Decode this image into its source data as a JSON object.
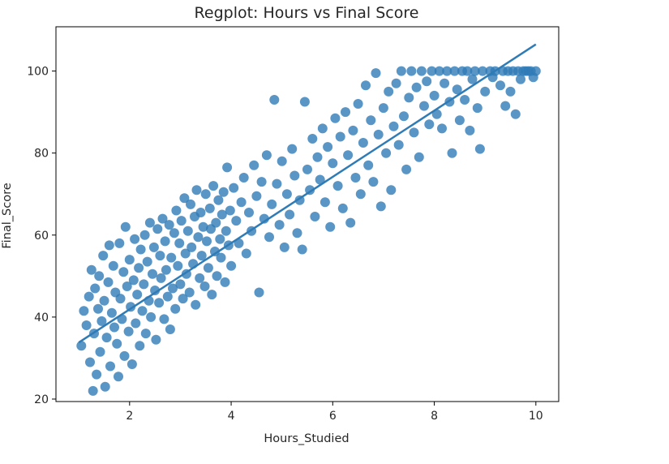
{
  "chart_data": {
    "type": "scatter",
    "title": "Regplot: Hours vs Final Score",
    "xlabel": "Hours_Studied",
    "ylabel": "Final_Score",
    "xlim": [
      0.55,
      10.45
    ],
    "ylim": [
      19.4,
      110.8
    ],
    "xticks": [
      2,
      4,
      6,
      8,
      10
    ],
    "yticks": [
      20,
      40,
      60,
      80,
      100
    ],
    "grid": false,
    "color": "#2f7bb6",
    "regression_line": {
      "x": [
        1.0,
        10.0
      ],
      "y": [
        33.8,
        106.5
      ]
    },
    "points": [
      [
        1.05,
        33.0
      ],
      [
        1.1,
        41.5
      ],
      [
        1.15,
        38.0
      ],
      [
        1.2,
        45.0
      ],
      [
        1.22,
        29.0
      ],
      [
        1.25,
        51.5
      ],
      [
        1.28,
        22.0
      ],
      [
        1.3,
        36.0
      ],
      [
        1.32,
        47.0
      ],
      [
        1.35,
        26.0
      ],
      [
        1.38,
        42.0
      ],
      [
        1.4,
        50.0
      ],
      [
        1.42,
        31.5
      ],
      [
        1.45,
        39.0
      ],
      [
        1.48,
        55.0
      ],
      [
        1.5,
        44.0
      ],
      [
        1.52,
        23.0
      ],
      [
        1.55,
        35.0
      ],
      [
        1.58,
        48.5
      ],
      [
        1.6,
        57.5
      ],
      [
        1.62,
        28.0
      ],
      [
        1.65,
        41.0
      ],
      [
        1.68,
        52.5
      ],
      [
        1.7,
        37.5
      ],
      [
        1.72,
        46.0
      ],
      [
        1.75,
        33.5
      ],
      [
        1.78,
        25.5
      ],
      [
        1.8,
        58.0
      ],
      [
        1.82,
        44.5
      ],
      [
        1.85,
        39.5
      ],
      [
        1.88,
        51.0
      ],
      [
        1.9,
        30.5
      ],
      [
        1.92,
        62.0
      ],
      [
        1.95,
        47.5
      ],
      [
        1.98,
        36.5
      ],
      [
        2.0,
        54.0
      ],
      [
        2.02,
        42.5
      ],
      [
        2.05,
        28.5
      ],
      [
        2.08,
        49.0
      ],
      [
        2.1,
        59.0
      ],
      [
        2.12,
        38.5
      ],
      [
        2.15,
        45.5
      ],
      [
        2.18,
        52.0
      ],
      [
        2.2,
        33.0
      ],
      [
        2.22,
        56.5
      ],
      [
        2.25,
        41.5
      ],
      [
        2.28,
        48.0
      ],
      [
        2.3,
        60.0
      ],
      [
        2.32,
        36.0
      ],
      [
        2.35,
        53.5
      ],
      [
        2.38,
        44.0
      ],
      [
        2.4,
        63.0
      ],
      [
        2.42,
        40.0
      ],
      [
        2.45,
        50.5
      ],
      [
        2.48,
        57.0
      ],
      [
        2.5,
        46.5
      ],
      [
        2.52,
        34.5
      ],
      [
        2.55,
        61.5
      ],
      [
        2.58,
        43.5
      ],
      [
        2.6,
        55.0
      ],
      [
        2.62,
        49.5
      ],
      [
        2.65,
        64.0
      ],
      [
        2.68,
        39.5
      ],
      [
        2.7,
        58.5
      ],
      [
        2.72,
        51.5
      ],
      [
        2.75,
        45.0
      ],
      [
        2.78,
        62.5
      ],
      [
        2.8,
        37.0
      ],
      [
        2.82,
        54.5
      ],
      [
        2.85,
        47.0
      ],
      [
        2.88,
        60.5
      ],
      [
        2.9,
        42.0
      ],
      [
        2.92,
        66.0
      ],
      [
        2.95,
        52.5
      ],
      [
        2.98,
        58.0
      ],
      [
        3.0,
        48.0
      ],
      [
        3.02,
        63.5
      ],
      [
        3.05,
        44.5
      ],
      [
        3.08,
        69.0
      ],
      [
        3.1,
        55.5
      ],
      [
        3.12,
        50.5
      ],
      [
        3.15,
        61.0
      ],
      [
        3.18,
        46.0
      ],
      [
        3.2,
        67.5
      ],
      [
        3.22,
        57.0
      ],
      [
        3.25,
        53.0
      ],
      [
        3.28,
        64.5
      ],
      [
        3.3,
        43.0
      ],
      [
        3.32,
        71.0
      ],
      [
        3.35,
        59.5
      ],
      [
        3.38,
        49.5
      ],
      [
        3.4,
        65.5
      ],
      [
        3.42,
        55.0
      ],
      [
        3.45,
        62.0
      ],
      [
        3.48,
        47.5
      ],
      [
        3.5,
        70.0
      ],
      [
        3.52,
        58.5
      ],
      [
        3.55,
        52.0
      ],
      [
        3.58,
        66.5
      ],
      [
        3.6,
        61.5
      ],
      [
        3.62,
        45.5
      ],
      [
        3.65,
        72.0
      ],
      [
        3.68,
        56.0
      ],
      [
        3.7,
        63.0
      ],
      [
        3.72,
        50.0
      ],
      [
        3.75,
        68.5
      ],
      [
        3.78,
        59.0
      ],
      [
        3.8,
        54.5
      ],
      [
        3.82,
        65.0
      ],
      [
        3.85,
        70.5
      ],
      [
        3.88,
        48.5
      ],
      [
        3.9,
        61.0
      ],
      [
        3.92,
        76.5
      ],
      [
        3.95,
        57.5
      ],
      [
        3.98,
        66.0
      ],
      [
        4.0,
        52.5
      ],
      [
        4.05,
        71.5
      ],
      [
        4.1,
        63.5
      ],
      [
        4.15,
        58.0
      ],
      [
        4.2,
        68.0
      ],
      [
        4.25,
        74.0
      ],
      [
        4.3,
        55.5
      ],
      [
        4.35,
        65.5
      ],
      [
        4.4,
        61.0
      ],
      [
        4.45,
        77.0
      ],
      [
        4.5,
        69.5
      ],
      [
        4.55,
        46.0
      ],
      [
        4.6,
        73.0
      ],
      [
        4.65,
        64.0
      ],
      [
        4.7,
        79.5
      ],
      [
        4.75,
        59.5
      ],
      [
        4.8,
        67.5
      ],
      [
        4.85,
        93.0
      ],
      [
        4.9,
        72.5
      ],
      [
        4.95,
        62.5
      ],
      [
        5.0,
        78.0
      ],
      [
        5.05,
        57.0
      ],
      [
        5.1,
        70.0
      ],
      [
        5.15,
        65.0
      ],
      [
        5.2,
        81.0
      ],
      [
        5.25,
        74.5
      ],
      [
        5.3,
        60.5
      ],
      [
        5.35,
        68.5
      ],
      [
        5.4,
        56.5
      ],
      [
        5.45,
        92.5
      ],
      [
        5.5,
        76.0
      ],
      [
        5.55,
        71.0
      ],
      [
        5.6,
        83.5
      ],
      [
        5.65,
        64.5
      ],
      [
        5.7,
        79.0
      ],
      [
        5.75,
        73.5
      ],
      [
        5.8,
        86.0
      ],
      [
        5.85,
        68.0
      ],
      [
        5.9,
        81.5
      ],
      [
        5.95,
        62.0
      ],
      [
        6.0,
        77.5
      ],
      [
        6.05,
        88.5
      ],
      [
        6.1,
        72.0
      ],
      [
        6.15,
        84.0
      ],
      [
        6.2,
        66.5
      ],
      [
        6.25,
        90.0
      ],
      [
        6.3,
        79.5
      ],
      [
        6.35,
        63.0
      ],
      [
        6.4,
        85.5
      ],
      [
        6.45,
        74.0
      ],
      [
        6.5,
        92.0
      ],
      [
        6.55,
        70.0
      ],
      [
        6.6,
        82.5
      ],
      [
        6.65,
        96.5
      ],
      [
        6.7,
        77.0
      ],
      [
        6.75,
        88.0
      ],
      [
        6.8,
        73.0
      ],
      [
        6.85,
        99.5
      ],
      [
        6.9,
        84.5
      ],
      [
        6.95,
        67.0
      ],
      [
        7.0,
        91.0
      ],
      [
        7.05,
        80.0
      ],
      [
        7.1,
        95.0
      ],
      [
        7.15,
        71.0
      ],
      [
        7.2,
        86.5
      ],
      [
        7.25,
        97.0
      ],
      [
        7.3,
        82.0
      ],
      [
        7.35,
        100.0
      ],
      [
        7.4,
        89.0
      ],
      [
        7.45,
        76.0
      ],
      [
        7.5,
        93.5
      ],
      [
        7.55,
        100.0
      ],
      [
        7.6,
        85.0
      ],
      [
        7.65,
        96.0
      ],
      [
        7.7,
        79.0
      ],
      [
        7.75,
        100.0
      ],
      [
        7.8,
        91.5
      ],
      [
        7.85,
        97.5
      ],
      [
        7.9,
        87.0
      ],
      [
        7.95,
        100.0
      ],
      [
        8.0,
        94.0
      ],
      [
        8.05,
        89.5
      ],
      [
        8.1,
        100.0
      ],
      [
        8.15,
        86.0
      ],
      [
        8.2,
        97.0
      ],
      [
        8.25,
        100.0
      ],
      [
        8.3,
        92.5
      ],
      [
        8.35,
        80.0
      ],
      [
        8.4,
        100.0
      ],
      [
        8.45,
        95.5
      ],
      [
        8.5,
        88.0
      ],
      [
        8.55,
        100.0
      ],
      [
        8.6,
        93.0
      ],
      [
        8.65,
        100.0
      ],
      [
        8.7,
        85.5
      ],
      [
        8.75,
        98.0
      ],
      [
        8.8,
        100.0
      ],
      [
        8.85,
        91.0
      ],
      [
        8.9,
        81.0
      ],
      [
        8.95,
        100.0
      ],
      [
        9.0,
        95.0
      ],
      [
        9.1,
        100.0
      ],
      [
        9.15,
        98.5
      ],
      [
        9.2,
        100.0
      ],
      [
        9.3,
        96.5
      ],
      [
        9.35,
        100.0
      ],
      [
        9.4,
        91.5
      ],
      [
        9.45,
        100.0
      ],
      [
        9.5,
        95.0
      ],
      [
        9.55,
        100.0
      ],
      [
        9.6,
        89.5
      ],
      [
        9.65,
        100.0
      ],
      [
        9.7,
        98.0
      ],
      [
        9.75,
        100.0
      ],
      [
        9.8,
        100.0
      ],
      [
        9.85,
        100.0
      ],
      [
        9.9,
        100.0
      ],
      [
        9.95,
        98.5
      ],
      [
        10.0,
        100.0
      ]
    ]
  }
}
